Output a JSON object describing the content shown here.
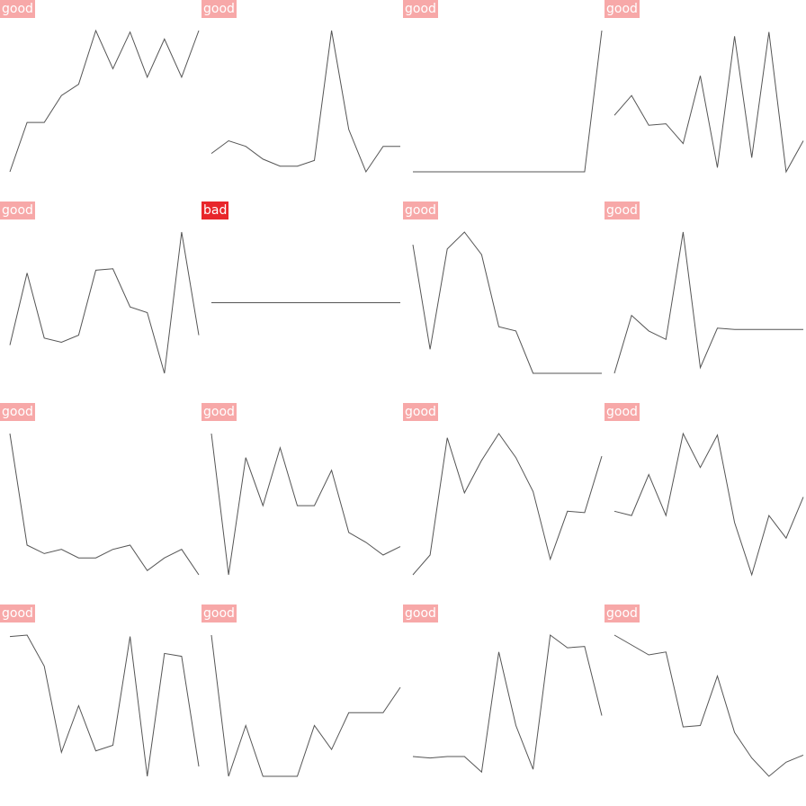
{
  "colors": {
    "good": "#f7a8a8",
    "bad": "#e8262b",
    "line": "#555555"
  },
  "chart_data": [
    {
      "type": "line",
      "label": "good",
      "status": "good",
      "values": [
        0.0,
        0.35,
        0.35,
        0.54,
        0.62,
        1.0,
        0.73,
        0.99,
        0.67,
        0.94,
        0.67,
        1.0
      ]
    },
    {
      "type": "line",
      "label": "good",
      "status": "good",
      "values": [
        0.13,
        0.22,
        0.18,
        0.09,
        0.04,
        0.04,
        0.08,
        1.0,
        0.3,
        0.0,
        0.18,
        0.18
      ]
    },
    {
      "type": "line",
      "label": "good",
      "status": "good",
      "values": [
        0.0,
        0.0,
        0.0,
        0.0,
        0.0,
        0.0,
        0.0,
        0.0,
        0.0,
        0.0,
        0.0,
        1.0
      ]
    },
    {
      "type": "line",
      "label": "good",
      "status": "good",
      "values": [
        0.4,
        0.54,
        0.33,
        0.34,
        0.2,
        0.68,
        0.03,
        0.96,
        0.1,
        0.99,
        0.0,
        0.22
      ]
    },
    {
      "type": "line",
      "label": "good",
      "status": "good",
      "values": [
        0.2,
        0.71,
        0.25,
        0.22,
        0.27,
        0.73,
        0.74,
        0.47,
        0.43,
        0.0,
        1.0,
        0.27
      ]
    },
    {
      "type": "line",
      "label": "bad",
      "status": "bad",
      "values": [
        0.5,
        0.5,
        0.5,
        0.5,
        0.5,
        0.5,
        0.5,
        0.5,
        0.5,
        0.5,
        0.5,
        0.5
      ]
    },
    {
      "type": "line",
      "label": "good",
      "status": "good",
      "values": [
        0.91,
        0.17,
        0.88,
        1.0,
        0.84,
        0.33,
        0.3,
        0.0,
        0.0,
        0.0,
        0.0,
        0.0
      ]
    },
    {
      "type": "line",
      "label": "good",
      "status": "good",
      "values": [
        0.0,
        0.41,
        0.3,
        0.24,
        1.0,
        0.04,
        0.32,
        0.31,
        0.31,
        0.31,
        0.31,
        0.31
      ]
    },
    {
      "type": "line",
      "label": "good",
      "status": "good",
      "values": [
        1.0,
        0.21,
        0.15,
        0.18,
        0.12,
        0.12,
        0.18,
        0.21,
        0.03,
        0.12,
        0.18,
        0.0
      ]
    },
    {
      "type": "line",
      "label": "good",
      "status": "good",
      "values": [
        1.0,
        0.0,
        0.83,
        0.49,
        0.9,
        0.49,
        0.49,
        0.74,
        0.3,
        0.23,
        0.14,
        0.2
      ]
    },
    {
      "type": "line",
      "label": "good",
      "status": "good",
      "values": [
        0.0,
        0.14,
        0.97,
        0.58,
        0.81,
        1.0,
        0.83,
        0.59,
        0.11,
        0.45,
        0.44,
        0.84
      ]
    },
    {
      "type": "line",
      "label": "good",
      "status": "good",
      "values": [
        0.45,
        0.42,
        0.71,
        0.42,
        1.0,
        0.76,
        0.99,
        0.37,
        0.0,
        0.42,
        0.26,
        0.55
      ]
    },
    {
      "type": "line",
      "label": "good",
      "status": "good",
      "values": [
        0.99,
        1.0,
        0.78,
        0.17,
        0.5,
        0.18,
        0.22,
        0.99,
        0.0,
        0.87,
        0.85,
        0.07
      ]
    },
    {
      "type": "line",
      "label": "good",
      "status": "good",
      "values": [
        1.0,
        0.0,
        0.36,
        0.0,
        0.0,
        0.0,
        0.36,
        0.19,
        0.45,
        0.45,
        0.45,
        0.63
      ]
    },
    {
      "type": "line",
      "label": "good",
      "status": "good",
      "values": [
        0.14,
        0.13,
        0.14,
        0.14,
        0.03,
        0.88,
        0.36,
        0.05,
        1.0,
        0.91,
        0.92,
        0.43
      ]
    },
    {
      "type": "line",
      "label": "good",
      "status": "good",
      "values": [
        1.0,
        0.93,
        0.86,
        0.88,
        0.35,
        0.36,
        0.71,
        0.31,
        0.13,
        0.0,
        0.1,
        0.15
      ]
    }
  ]
}
